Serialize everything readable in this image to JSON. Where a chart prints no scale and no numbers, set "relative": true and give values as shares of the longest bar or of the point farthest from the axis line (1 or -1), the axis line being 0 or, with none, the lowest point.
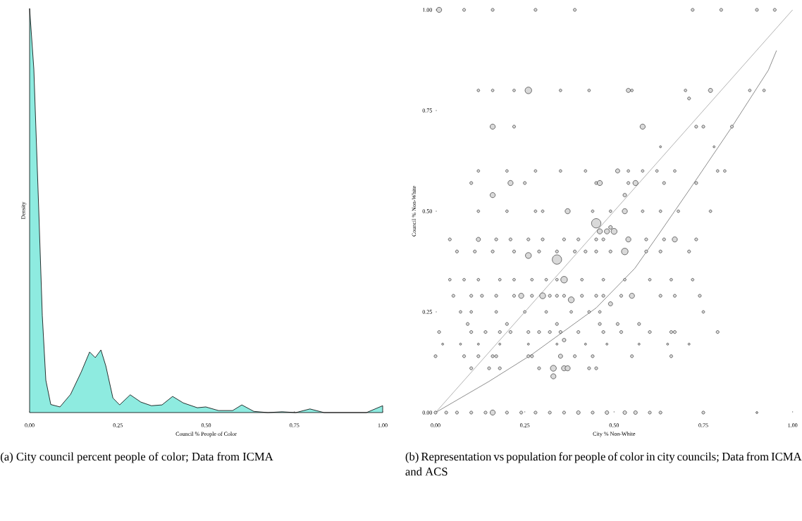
{
  "chart_data": [
    {
      "type": "area",
      "relative": true,
      "color": "#8eebe0",
      "xlabel": "Council % People of Color",
      "ylabel": "Density",
      "tick_labels": "x",
      "xlim": [
        0,
        1
      ],
      "xticks": [
        {
          "value": 0,
          "label": "0.00"
        },
        {
          "value": 0.25,
          "label": "0.25"
        },
        {
          "value": 0.5,
          "label": "0.50"
        },
        {
          "value": 0.75,
          "label": "0.75"
        },
        {
          "value": 1,
          "label": "1.00"
        }
      ],
      "x": [
        0,
        0.012,
        0.026,
        0.036,
        0.046,
        0.06,
        0.086,
        0.116,
        0.146,
        0.17,
        0.186,
        0.202,
        0.216,
        0.236,
        0.255,
        0.285,
        0.315,
        0.345,
        0.375,
        0.405,
        0.435,
        0.475,
        0.499,
        0.535,
        0.575,
        0.601,
        0.635,
        0.675,
        0.715,
        0.754,
        0.794,
        0.834,
        0.954,
        1
      ],
      "values": [
        1,
        0.85,
        0.5,
        0.24,
        0.08,
        0.02,
        0.014,
        0.045,
        0.1,
        0.15,
        0.136,
        0.155,
        0.115,
        0.036,
        0.019,
        0.044,
        0.026,
        0.017,
        0.019,
        0.04,
        0.024,
        0.012,
        0.014,
        0.005,
        0.005,
        0.019,
        0.003,
        0,
        0.002,
        0,
        0.009,
        0,
        0,
        0.017
      ],
      "annotations": [
        "(a) City council percent people of color; Data from ICMA"
      ]
    },
    {
      "type": "bubble",
      "xlabel": "City % Non-White",
      "ylabel": "Council % Non-White",
      "xlim": [
        0,
        1.0
      ],
      "ylim": [
        0,
        1.0
      ],
      "xticks": [
        {
          "value": 0,
          "label": "0.00"
        },
        {
          "value": 0.25,
          "label": "0.25"
        },
        {
          "value": 0.5,
          "label": "0.50"
        },
        {
          "value": 0.75,
          "label": "0.75"
        },
        {
          "value": 1,
          "label": "1.00"
        }
      ],
      "yticks": [
        {
          "value": 0,
          "label": "0.00"
        },
        {
          "value": 0.25,
          "label": "0.25"
        },
        {
          "value": 0.5,
          "label": "0.50"
        },
        {
          "value": 0.75,
          "label": "0.75"
        },
        {
          "value": 1,
          "label": "1.00"
        }
      ],
      "series": [
        {
          "type": "bubble",
          "color": "#d9d9d9",
          "x": [
            0,
            0.03,
            0.06,
            0.1,
            0.14,
            0.16,
            0.2,
            0.24,
            0.28,
            0.32,
            0.36,
            0.4,
            0.44,
            0.48,
            0.53,
            0.56,
            0.6,
            0.63,
            0.75,
            0.9,
            0.1,
            0.15,
            0.18,
            0.29,
            0.33,
            0.36,
            0.37,
            0.43,
            0.45,
            0,
            0.08,
            0.12,
            0.16,
            0.17,
            0.26,
            0.27,
            0.35,
            0.39,
            0.44,
            0.55,
            0.66,
            0.02,
            0.07,
            0.12,
            0.18,
            0.26,
            0.34,
            0.42,
            0.48,
            0.57,
            0.65,
            0.71,
            0.01,
            0.1,
            0.14,
            0.18,
            0.21,
            0.26,
            0.29,
            0.32,
            0.35,
            0.4,
            0.47,
            0.52,
            0.6,
            0.66,
            0.67,
            0.79,
            0.09,
            0.2,
            0.34,
            0.46,
            0.51,
            0.57,
            0.07,
            0.1,
            0.17,
            0.25,
            0.31,
            0.38,
            0.43,
            0.46,
            0.75,
            0.05,
            0.1,
            0.13,
            0.17,
            0.22,
            0.24,
            0.27,
            0.3,
            0.32,
            0.34,
            0.36,
            0.41,
            0.45,
            0.47,
            0.52,
            0.55,
            0.63,
            0.67,
            0.74,
            0.38,
            0.49,
            0.33,
            0.36,
            0.04,
            0.08,
            0.12,
            0.18,
            0.22,
            0.27,
            0.31,
            0.34,
            0.36,
            0.41,
            0.47,
            0.53,
            0.6,
            0.66,
            0.72,
            0.06,
            0.11,
            0.16,
            0.22,
            0.29,
            0.34,
            0.39,
            0.42,
            0.45,
            0.49,
            0.53,
            0.59,
            0.63,
            0.71,
            0.04,
            0.12,
            0.17,
            0.21,
            0.26,
            0.3,
            0.36,
            0.4,
            0.45,
            0.47,
            0.54,
            0.59,
            0.64,
            0.67,
            0.73,
            0.45,
            0.46,
            0.48,
            0.5,
            0.49,
            0.26,
            0.34,
            0.16,
            0.53,
            0.12,
            0.2,
            0.28,
            0.3,
            0.37,
            0.44,
            0.49,
            0.53,
            0.58,
            0.63,
            0.68,
            0.77,
            0.1,
            0.21,
            0.25,
            0.45,
            0.46,
            0.54,
            0.56,
            0.64,
            0.73,
            0.12,
            0.2,
            0.28,
            0.35,
            0.42,
            0.51,
            0.54,
            0.58,
            0.62,
            0.67,
            0.79,
            0.81,
            0.16,
            0.22,
            0.58,
            0.73,
            0.75,
            0.83,
            0.12,
            0.16,
            0.22,
            0.26,
            0.35,
            0.43,
            0.54,
            0.55,
            0.7,
            0.77,
            0.88,
            0.92,
            0.71,
            0.63,
            0.78,
            0.01,
            0.08,
            0.16,
            0.28,
            0.39,
            0.72,
            0.8,
            0.9,
            0.95
          ],
          "values": [
            0,
            0,
            0,
            0,
            0,
            0,
            0,
            0,
            0,
            0,
            0,
            0,
            0,
            0,
            0,
            0,
            0,
            0,
            0,
            0,
            0.11,
            0.11,
            0.11,
            0.11,
            0.11,
            0.11,
            0.11,
            0.11,
            0.11,
            0.14,
            0.14,
            0.14,
            0.14,
            0.14,
            0.14,
            0.14,
            0.14,
            0.14,
            0.14,
            0.14,
            0.14,
            0.17,
            0.17,
            0.17,
            0.17,
            0.17,
            0.17,
            0.17,
            0.17,
            0.17,
            0.17,
            0.17,
            0.2,
            0.2,
            0.2,
            0.2,
            0.2,
            0.2,
            0.2,
            0.2,
            0.2,
            0.2,
            0.2,
            0.2,
            0.2,
            0.2,
            0.2,
            0.2,
            0.22,
            0.22,
            0.22,
            0.22,
            0.22,
            0.22,
            0.25,
            0.25,
            0.25,
            0.25,
            0.25,
            0.25,
            0.25,
            0.25,
            0.25,
            0.29,
            0.29,
            0.29,
            0.29,
            0.29,
            0.29,
            0.29,
            0.29,
            0.29,
            0.29,
            0.29,
            0.29,
            0.29,
            0.29,
            0.29,
            0.29,
            0.29,
            0.29,
            0.29,
            0.28,
            0.27,
            0.09,
            0.18,
            0.33,
            0.33,
            0.33,
            0.33,
            0.33,
            0.33,
            0.33,
            0.33,
            0.33,
            0.33,
            0.33,
            0.33,
            0.33,
            0.33,
            0.33,
            0.4,
            0.4,
            0.4,
            0.4,
            0.4,
            0.4,
            0.4,
            0.4,
            0.4,
            0.4,
            0.4,
            0.4,
            0.4,
            0.4,
            0.43,
            0.43,
            0.43,
            0.43,
            0.43,
            0.43,
            0.43,
            0.43,
            0.43,
            0.43,
            0.43,
            0.43,
            0.43,
            0.43,
            0.43,
            0.47,
            0.45,
            0.45,
            0.45,
            0.46,
            0.39,
            0.38,
            0.54,
            0.54,
            0.5,
            0.5,
            0.5,
            0.5,
            0.5,
            0.5,
            0.5,
            0.5,
            0.5,
            0.5,
            0.5,
            0.5,
            0.57,
            0.57,
            0.57,
            0.57,
            0.57,
            0.57,
            0.57,
            0.57,
            0.57,
            0.6,
            0.6,
            0.6,
            0.6,
            0.6,
            0.6,
            0.6,
            0.6,
            0.6,
            0.6,
            0.6,
            0.6,
            0.71,
            0.71,
            0.71,
            0.71,
            0.71,
            0.71,
            0.8,
            0.8,
            0.8,
            0.8,
            0.8,
            0.8,
            0.8,
            0.8,
            0.8,
            0.8,
            0.8,
            0.8,
            0.78,
            0.66,
            0.66,
            1,
            1,
            1,
            1,
            1,
            1,
            1,
            1,
            1
          ],
          "sizes": [
            0.1,
            0.1,
            0.1,
            0.1,
            0.1,
            0.3,
            0.1,
            0.1,
            0.1,
            0.1,
            0.1,
            0.15,
            0.1,
            0.15,
            0.15,
            0.15,
            0.1,
            0.1,
            0.1,
            0.05,
            0.1,
            0.1,
            0.1,
            0.1,
            0.4,
            0.3,
            0.3,
            0.1,
            0.1,
            0.1,
            0.1,
            0.1,
            0.1,
            0.1,
            0.1,
            0.1,
            0.2,
            0.1,
            0.1,
            0.1,
            0.1,
            0.05,
            0.05,
            0.05,
            0.05,
            0.05,
            0.05,
            0.05,
            0.05,
            0.05,
            0.05,
            0.05,
            0.1,
            0.1,
            0.1,
            0.1,
            0.1,
            0.1,
            0.1,
            0.1,
            0.1,
            0.1,
            0.1,
            0.1,
            0.1,
            0.1,
            0.1,
            0.1,
            0.1,
            0.1,
            0.1,
            0.1,
            0.1,
            0.1,
            0.08,
            0.08,
            0.08,
            0.08,
            0.08,
            0.08,
            0.08,
            0.08,
            0.08,
            0.1,
            0.1,
            0.1,
            0.1,
            0.1,
            0.3,
            0.1,
            0.4,
            0.1,
            0.1,
            0.1,
            0.1,
            0.1,
            0.1,
            0.1,
            0.3,
            0.1,
            0.1,
            0.1,
            0.4,
            0.2,
            0.3,
            0.15,
            0.08,
            0.08,
            0.08,
            0.08,
            0.08,
            0.08,
            0.08,
            0.08,
            0.5,
            0.08,
            0.08,
            0.08,
            0.08,
            0.08,
            0.08,
            0.1,
            0.1,
            0.1,
            0.1,
            0.1,
            0.1,
            0.1,
            0.1,
            0.1,
            0.1,
            0.5,
            0.1,
            0.1,
            0.1,
            0.1,
            0.2,
            0.1,
            0.1,
            0.1,
            0.1,
            0.1,
            0.1,
            0.1,
            0.1,
            0.3,
            0.1,
            0.1,
            0.3,
            0.1,
            1,
            0.3,
            0.3,
            0.4,
            0.15,
            0.4,
            1,
            0.3,
            0.15,
            0.08,
            0.08,
            0.08,
            0.08,
            0.3,
            0.08,
            0.08,
            0.3,
            0.08,
            0.08,
            0.08,
            0.08,
            0.1,
            0.3,
            0.1,
            0.1,
            0.3,
            0.1,
            0.3,
            0.1,
            0.1,
            0.08,
            0.08,
            0.08,
            0.08,
            0.08,
            0.2,
            0.08,
            0.08,
            0.08,
            0.08,
            0.08,
            0.08,
            0.3,
            0.1,
            0.3,
            0.1,
            0.1,
            0.1,
            0.08,
            0.08,
            0.08,
            0.5,
            0.08,
            0.08,
            0.2,
            0.08,
            0.08,
            0.2,
            0.08,
            0.08,
            0.1,
            0.05,
            0.05,
            0.3,
            0.1,
            0.1,
            0.1,
            0.1,
            0.1,
            0.1,
            0.1,
            0.1
          ]
        },
        {
          "type": "line",
          "color": "#8c8c8c",
          "x": [
            0,
            1.0
          ],
          "values": [
            0,
            1.0
          ]
        },
        {
          "type": "line",
          "color": "#555555",
          "x": [
            0,
            0.149,
            0.271,
            0.45,
            0.558,
            0.626,
            0.713,
            0.829,
            0.932,
            0.955
          ],
          "values": [
            0,
            0.077,
            0.145,
            0.26,
            0.358,
            0.444,
            0.556,
            0.708,
            0.85,
            0.899
          ]
        }
      ],
      "annotations": [
        "(b) Representation vs population for people of color in city councils; Data from ICMA and ACS"
      ]
    }
  ]
}
